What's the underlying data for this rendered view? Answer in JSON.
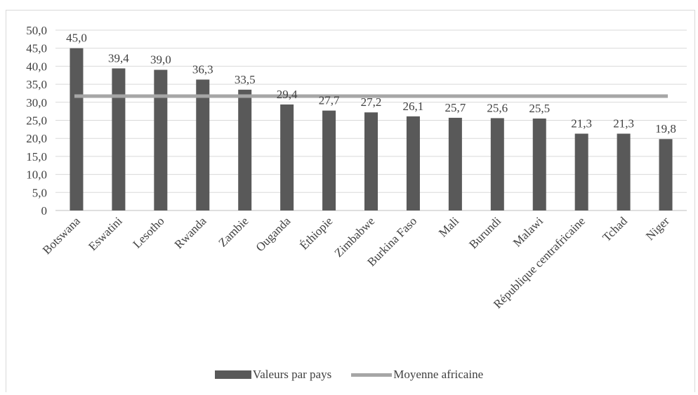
{
  "chart_data": {
    "type": "bar",
    "categories": [
      "Botswana",
      "Eswatini",
      "Lesotho",
      "Rwanda",
      "Zambie",
      "Ouganda",
      "Éthiopie",
      "Zimbabwe",
      "Burkina Faso",
      "Mali",
      "Burundi",
      "Malawi",
      "République centrafricaine",
      "Tchad",
      "Niger"
    ],
    "series": [
      {
        "name": "Valeurs par pays",
        "type": "bar",
        "color": "#595959",
        "values": [
          45.0,
          39.4,
          39.0,
          36.3,
          33.5,
          29.4,
          27.7,
          27.2,
          26.1,
          25.7,
          25.6,
          25.5,
          21.3,
          21.3,
          19.8
        ],
        "data_labels": [
          "45,0",
          "39,4",
          "39,0",
          "36,3",
          "33,5",
          "29,4",
          "27,7",
          "27,2",
          "26,1",
          "25,7",
          "25,6",
          "25,5",
          "21,3",
          "21,3",
          "19,8"
        ]
      },
      {
        "name": "Moyenne africaine",
        "type": "line",
        "color": "#a6a6a6",
        "value": 31.7
      }
    ],
    "yticks": [
      "0",
      "5,0",
      "10,0",
      "15,0",
      "20,0",
      "25,0",
      "30,0",
      "35,0",
      "40,0",
      "45,0",
      "50,0"
    ],
    "ylim": [
      0,
      50
    ],
    "grid": true,
    "legend_position": "bottom"
  }
}
